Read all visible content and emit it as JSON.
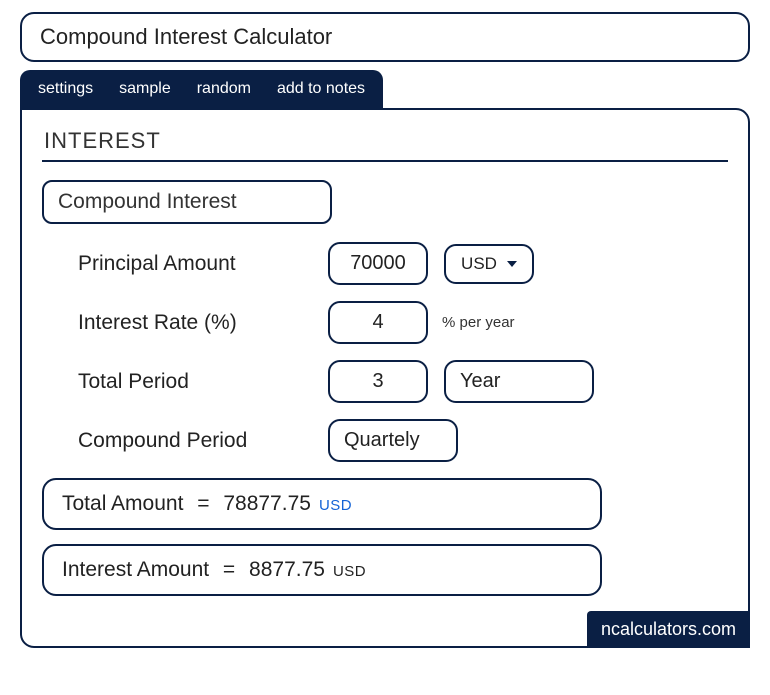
{
  "title": "Compound Interest Calculator",
  "tabs": {
    "settings": "settings",
    "sample": "sample",
    "random": "random",
    "add_notes": "add to notes"
  },
  "section_heading": "INTEREST",
  "mode_label": "Compound Interest",
  "fields": {
    "principal": {
      "label": "Principal Amount",
      "value": "70000"
    },
    "rate": {
      "label": "Interest Rate (%)",
      "value": "4",
      "suffix": "% per year"
    },
    "period": {
      "label": "Total Period",
      "value": "3",
      "unit": "Year"
    },
    "compound": {
      "label": "Compound Period",
      "value": "Quartely"
    }
  },
  "currency": "USD",
  "results": {
    "total": {
      "label": "Total Amount",
      "value": "78877.75",
      "unit": "USD"
    },
    "interest": {
      "label": "Interest Amount",
      "value": "8877.75",
      "unit": "USD"
    }
  },
  "brand": "ncalculators.com",
  "colors": {
    "border": "#0a1f44",
    "tab_bg": "#0a1f44",
    "unit_highlight": "#1463d6"
  }
}
